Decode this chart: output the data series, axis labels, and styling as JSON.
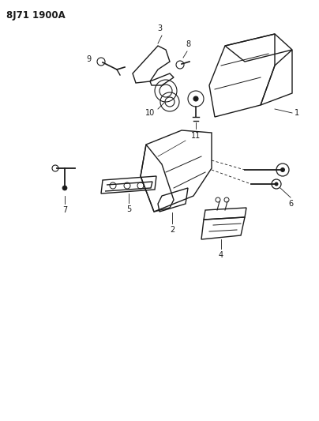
{
  "title": "8J71 1900A",
  "bg_color": "#ffffff",
  "line_color": "#1a1a1a",
  "figsize": [
    4.04,
    5.33
  ],
  "dpi": 100
}
